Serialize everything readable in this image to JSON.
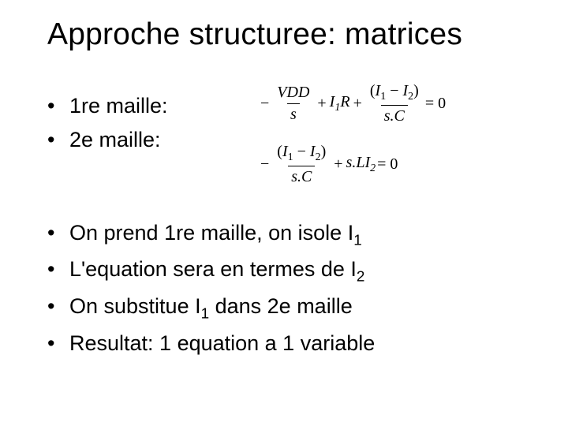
{
  "title": "Approche structuree: matrices",
  "group1": {
    "item1": "1re maille:",
    "item2": "2e maille:"
  },
  "group2": {
    "item1_prefix": "On prend 1re maille, on isole I",
    "item1_sub": "1",
    "item2_prefix": "L'equation sera en termes de I",
    "item2_sub": "2",
    "item3_prefix": "On substitue I",
    "item3_sub": "1",
    "item3_suffix": " dans 2e maille",
    "item4": "Resultat: 1 equation a 1 variable"
  },
  "equations": {
    "eq1": {
      "minus": "−",
      "frac1_num": "VDD",
      "frac1_den": "s",
      "plus1": "+",
      "term2_pre": "I",
      "term2_sub": "1",
      "term2_post": "R",
      "plus2": "+",
      "frac2_num_open": "(",
      "frac2_num_I1_pre": "I",
      "frac2_num_I1_sub": "1",
      "frac2_num_minus": " − ",
      "frac2_num_I2_pre": "I",
      "frac2_num_I2_sub": "2",
      "frac2_num_close": ")",
      "frac2_den": "s.C",
      "equals": " = 0"
    },
    "eq2": {
      "minus": "−",
      "frac_num_open": "(",
      "frac_num_I1_pre": "I",
      "frac_num_I1_sub": "1",
      "frac_num_minus": " − ",
      "frac_num_I2_pre": "I",
      "frac_num_I2_sub": "2",
      "frac_num_close": ")",
      "frac_den": "s.C",
      "plus": "+",
      "term2_pre": "s.LI",
      "term2_sub": "2",
      "equals": " = 0"
    }
  }
}
